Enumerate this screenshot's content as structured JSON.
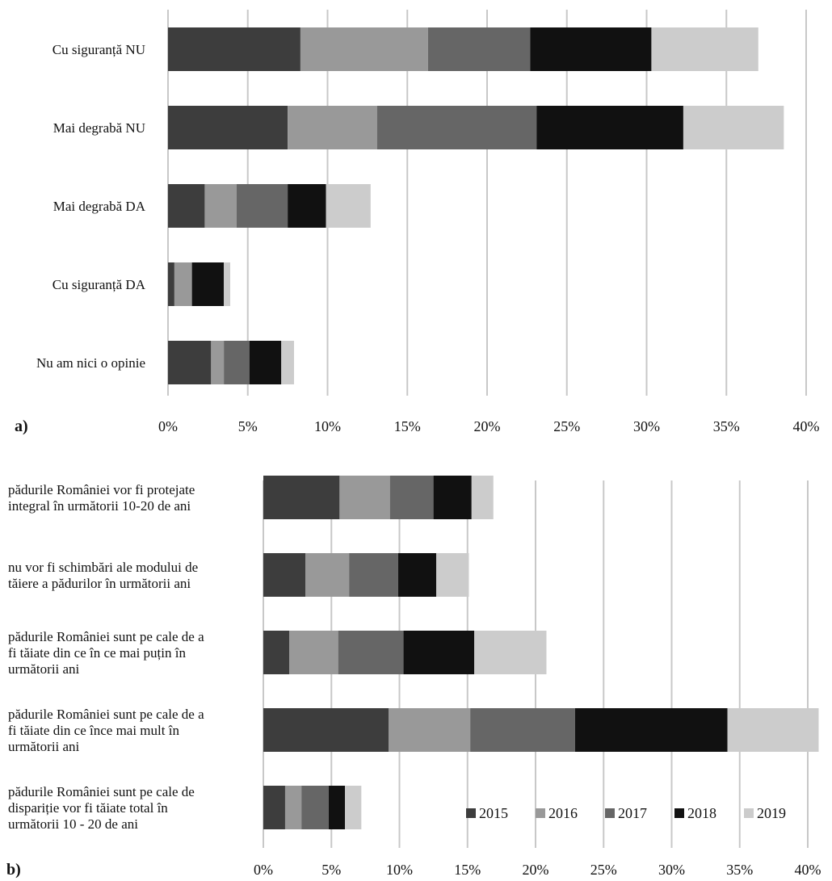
{
  "chart_data": [
    {
      "panel_label": "a)",
      "type": "bar",
      "orientation": "horizontal",
      "stacked": true,
      "categories": [
        "Cu siguranță NU",
        "Mai degrabă NU",
        "Mai degrabă DA",
        "Cu siguranță DA",
        "Nu am nici o opinie"
      ],
      "series": [
        {
          "name": "2015",
          "color": "#3d3d3d",
          "values": [
            8.3,
            7.5,
            2.3,
            0.4,
            2.7
          ]
        },
        {
          "name": "2016",
          "color": "#999999",
          "values": [
            8.0,
            5.6,
            2.0,
            1.1,
            0.8
          ]
        },
        {
          "name": "2017",
          "color": "#666666",
          "values": [
            6.4,
            10.0,
            3.2,
            0.0,
            1.6
          ]
        },
        {
          "name": "2018",
          "color": "#111111",
          "values": [
            7.6,
            9.2,
            2.4,
            2.0,
            2.0
          ]
        },
        {
          "name": "2019",
          "color": "#cccccc",
          "values": [
            6.7,
            6.3,
            2.8,
            0.4,
            0.8
          ]
        }
      ],
      "xlim": [
        0,
        40
      ],
      "xticks": [
        "0%",
        "5%",
        "10%",
        "15%",
        "20%",
        "25%",
        "30%",
        "35%",
        "40%"
      ],
      "grid": true
    },
    {
      "panel_label": "b)",
      "type": "bar",
      "orientation": "horizontal",
      "stacked": true,
      "categories": [
        [
          "pădurile României vor fi protejate",
          "integral în următorii 10-20 de ani"
        ],
        [
          "nu vor fi schimbări ale modului de",
          "tăiere a pădurilor în următorii ani"
        ],
        [
          "pădurile României sunt pe cale de a",
          "fi tăiate din ce în ce mai puțin în",
          "următorii ani"
        ],
        [
          "pădurile României sunt pe cale de a",
          "fi tăiate din ce înce mai mult în",
          "următorii ani"
        ],
        [
          "pădurile României sunt pe cale de",
          "dispariție   vor fi tăiate total în",
          "următorii 10 - 20 de ani"
        ]
      ],
      "series": [
        {
          "name": "2015",
          "color": "#3d3d3d",
          "values": [
            5.6,
            3.1,
            1.9,
            9.2,
            1.6
          ]
        },
        {
          "name": "2016",
          "color": "#999999",
          "values": [
            3.7,
            3.2,
            3.6,
            6.0,
            1.2
          ]
        },
        {
          "name": "2017",
          "color": "#666666",
          "values": [
            3.2,
            3.6,
            4.8,
            7.7,
            2.0
          ]
        },
        {
          "name": "2018",
          "color": "#111111",
          "values": [
            2.8,
            2.8,
            5.2,
            11.2,
            1.2
          ]
        },
        {
          "name": "2019",
          "color": "#cccccc",
          "values": [
            1.6,
            2.4,
            5.3,
            6.7,
            1.2
          ]
        }
      ],
      "xlim": [
        0,
        40
      ],
      "xticks": [
        "0%",
        "5%",
        "10%",
        "15%",
        "20%",
        "25%",
        "30%",
        "35%",
        "40%"
      ],
      "grid": true,
      "legend": {
        "position": "bottom-right",
        "entries": [
          "2015",
          "2016",
          "2017",
          "2018",
          "2019"
        ]
      }
    }
  ]
}
